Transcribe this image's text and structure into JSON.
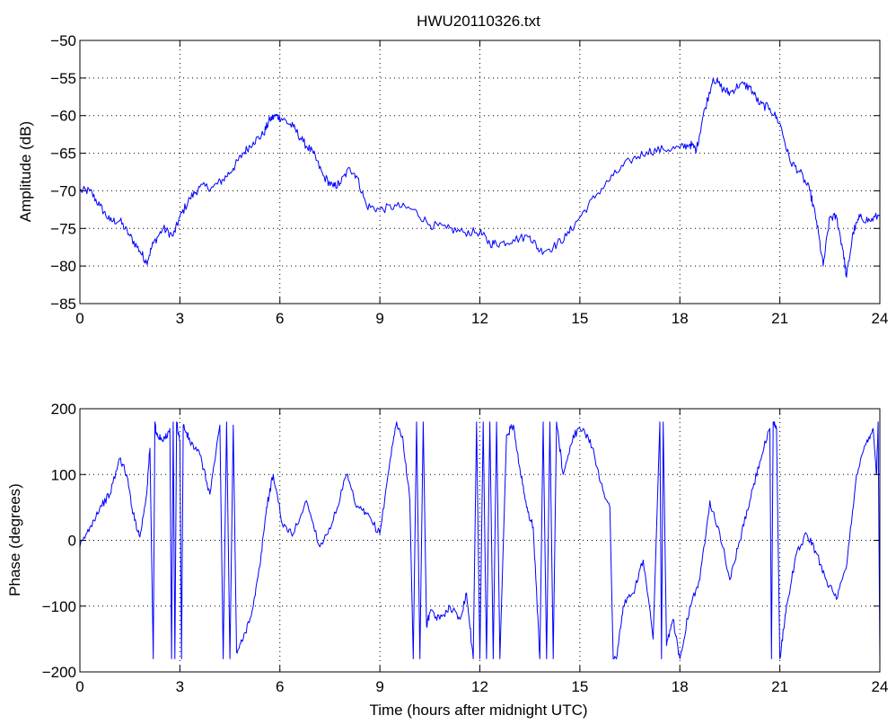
{
  "chart_data": [
    {
      "type": "line",
      "title": "HWU20110326.txt",
      "xlabel": "",
      "ylabel": "Amplitude (dB)",
      "xlim": [
        0,
        24
      ],
      "ylim": [
        -85,
        -50
      ],
      "xticks": [
        0,
        3,
        6,
        9,
        12,
        15,
        18,
        21,
        24
      ],
      "yticks": [
        -85,
        -80,
        -75,
        -70,
        -65,
        -60,
        -55,
        -50
      ],
      "grid": true,
      "color": "#0000ff",
      "series": [
        {
          "x": [
            0,
            0.3,
            0.6,
            0.9,
            1.2,
            1.5,
            1.8,
            2.0,
            2.2,
            2.5,
            2.8,
            3.0,
            3.3,
            3.6,
            4.0,
            4.3,
            4.6,
            4.9,
            5.2,
            5.5,
            5.7,
            5.9,
            6.1,
            6.4,
            6.7,
            7.0,
            7.3,
            7.6,
            7.8,
            8.1,
            8.3,
            8.6,
            9.0,
            9.5,
            10.0,
            10.5,
            11.0,
            11.5,
            12.0,
            12.3,
            12.6,
            13.0,
            13.5,
            13.8,
            14.2,
            14.6,
            15.0,
            15.5,
            16.0,
            16.5,
            17.0,
            17.5,
            18.0,
            18.3,
            18.5,
            18.7,
            19.0,
            19.3,
            19.5,
            19.8,
            20.1,
            20.4,
            20.7,
            21.0,
            21.3,
            21.6,
            21.9,
            22.1,
            22.3,
            22.5,
            22.7,
            22.9,
            23.0,
            23.2,
            23.4,
            23.7,
            24.0
          ],
          "y": [
            -70,
            -70,
            -72,
            -74,
            -74,
            -76,
            -78,
            -79.5,
            -77,
            -75,
            -76,
            -73.5,
            -71,
            -69.5,
            -69.5,
            -68.5,
            -67,
            -65,
            -63.5,
            -62.5,
            -60.5,
            -60,
            -60.5,
            -61.5,
            -63.5,
            -65,
            -68,
            -69.5,
            -69,
            -67,
            -68,
            -72,
            -72.5,
            -72,
            -72.5,
            -74.5,
            -75,
            -75.5,
            -75.5,
            -77,
            -77,
            -76.5,
            -76,
            -78,
            -77.5,
            -76,
            -73.5,
            -70.5,
            -68,
            -66,
            -64.8,
            -64.5,
            -64.3,
            -63.8,
            -64.5,
            -60,
            -55,
            -56.5,
            -57,
            -55.8,
            -56.2,
            -58.5,
            -59,
            -61,
            -66,
            -67.5,
            -70,
            -74,
            -80,
            -73.5,
            -73.5,
            -78,
            -81.5,
            -75.5,
            -73.5,
            -74,
            -73.2
          ]
        }
      ]
    },
    {
      "type": "line",
      "title": "",
      "xlabel": "Time (hours after midnight UTC)",
      "ylabel": "Phase (degrees)",
      "xlim": [
        0,
        24
      ],
      "ylim": [
        -200,
        200
      ],
      "xticks": [
        0,
        3,
        6,
        9,
        12,
        15,
        18,
        21,
        24
      ],
      "yticks": [
        -200,
        -100,
        0,
        100,
        200
      ],
      "grid": true,
      "color": "#0000ff",
      "series": [
        {
          "x": [
            0,
            0.3,
            0.6,
            0.9,
            1.2,
            1.4,
            1.6,
            1.8,
            2.0,
            2.1,
            2.2,
            2.25,
            2.3,
            2.5,
            2.7,
            2.75,
            2.8,
            2.85,
            2.9,
            3.0,
            3.05,
            3.1,
            3.3,
            3.6,
            3.9,
            4.2,
            4.3,
            4.4,
            4.5,
            4.6,
            4.7,
            4.9,
            5.2,
            5.4,
            5.6,
            5.8,
            6.1,
            6.4,
            6.8,
            7.2,
            7.6,
            8.0,
            8.3,
            8.6,
            9.0,
            9.3,
            9.5,
            9.7,
            9.9,
            10.0,
            10.1,
            10.2,
            10.3,
            10.4,
            10.5,
            10.8,
            11.1,
            11.4,
            11.6,
            11.8,
            11.9,
            12.0,
            12.1,
            12.2,
            12.3,
            12.4,
            12.5,
            12.6,
            12.8,
            13.0,
            13.2,
            13.4,
            13.6,
            13.8,
            13.9,
            14.0,
            14.1,
            14.2,
            14.3,
            14.5,
            14.8,
            15.1,
            15.4,
            15.6,
            15.9,
            16.0,
            16.1,
            16.3,
            16.6,
            16.9,
            17.2,
            17.4,
            17.45,
            17.5,
            17.6,
            17.8,
            18.0,
            18.3,
            18.6,
            18.9,
            19.2,
            19.5,
            19.8,
            20.1,
            20.4,
            20.7,
            20.75,
            20.8,
            20.9,
            21.0,
            21.2,
            21.5,
            21.8,
            22.1,
            22.4,
            22.7,
            23.0,
            23.3,
            23.6,
            23.8,
            23.9,
            23.95,
            24.0
          ],
          "y": [
            -10,
            20,
            50,
            70,
            125,
            100,
            40,
            5,
            70,
            140,
            -180,
            180,
            160,
            150,
            170,
            -180,
            180,
            -180,
            180,
            150,
            -180,
            175,
            150,
            130,
            70,
            175,
            -180,
            180,
            -180,
            175,
            -170,
            -150,
            -100,
            -40,
            50,
            100,
            20,
            10,
            60,
            -10,
            30,
            100,
            50,
            40,
            10,
            120,
            180,
            150,
            60,
            -180,
            180,
            -180,
            180,
            -130,
            -110,
            -120,
            -100,
            -120,
            -80,
            -180,
            180,
            -180,
            180,
            -180,
            180,
            -180,
            180,
            -180,
            160,
            175,
            110,
            50,
            20,
            -180,
            180,
            -180,
            180,
            -180,
            180,
            100,
            160,
            170,
            140,
            90,
            50,
            -180,
            -180,
            -100,
            -80,
            -30,
            -150,
            180,
            -180,
            180,
            -160,
            -120,
            -180,
            -100,
            -60,
            60,
            10,
            -60,
            0,
            60,
            120,
            170,
            -180,
            180,
            170,
            -180,
            -100,
            -20,
            10,
            -20,
            -60,
            -90,
            -40,
            100,
            150,
            170,
            100,
            180,
            -180
          ]
        }
      ]
    }
  ]
}
